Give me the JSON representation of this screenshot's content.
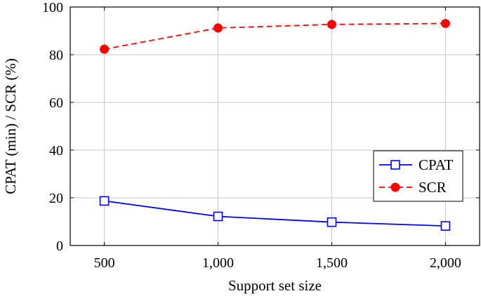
{
  "chart_data": {
    "type": "line",
    "title": "",
    "xlabel": "Support set size",
    "ylabel": "CPAT (min) / SCR (%)",
    "x": [
      500,
      1000,
      1500,
      2000
    ],
    "x_tick_labels": [
      "500",
      "1,000",
      "1,500",
      "2,000"
    ],
    "xlim": [
      350,
      2150
    ],
    "ylim": [
      0,
      100
    ],
    "y_ticks": [
      0,
      20,
      40,
      60,
      80,
      100
    ],
    "grid": true,
    "legend_position": "center-right",
    "series": [
      {
        "name": "CPAT",
        "values": [
          18.7,
          12.2,
          9.8,
          8.2
        ],
        "color": "#0000ff",
        "line_style": "solid",
        "marker": "open-square"
      },
      {
        "name": "SCR",
        "values": [
          82.3,
          91.2,
          92.7,
          93.1
        ],
        "color": "#ff0000",
        "line_style": "dashed",
        "marker": "filled-circle"
      }
    ]
  }
}
